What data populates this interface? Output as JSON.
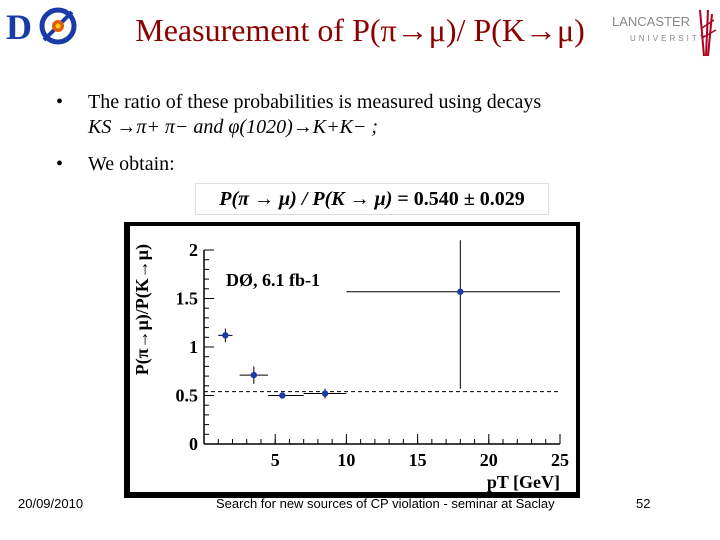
{
  "title": "Measurement of P(π→μ)/ P(K→μ)",
  "logos": {
    "left": "D0-logo",
    "right": "lancaster-university-logo"
  },
  "lancaster_text": {
    "top": "LANCASTER",
    "bottom": "UNIVERSITY"
  },
  "bullets": {
    "b1_line1": "The ratio of these probabilities is measured using decays",
    "b1_line2": "KS →π+ π− and φ(1020)→K+K− ;",
    "b2": "We obtain:"
  },
  "formula": {
    "lhs": "P(π → μ) / P(K → μ)",
    "rhs": "= 0.540 ± 0.029"
  },
  "chart_data": {
    "type": "scatter",
    "title": "",
    "annotation": "DØ, 6.1 fb-1",
    "xlabel": "pT [GeV]",
    "ylabel": "P(π→μ)/P(K→μ)",
    "xlim": [
      0,
      25
    ],
    "ylim": [
      0,
      2
    ],
    "xticks": [
      "5",
      "10",
      "15",
      "20",
      "25"
    ],
    "yticks": [
      "0",
      "0.5",
      "1",
      "1.5",
      "2"
    ],
    "points": [
      {
        "x": 1.5,
        "y": 1.12,
        "xerr": [
          1.0,
          2.0
        ],
        "yerr": 0.07
      },
      {
        "x": 3.5,
        "y": 0.71,
        "xerr": [
          2.5,
          4.5
        ],
        "yerr": 0.09
      },
      {
        "x": 5.5,
        "y": 0.5,
        "xerr": [
          4.5,
          7.0
        ],
        "yerr": 0.02
      },
      {
        "x": 8.5,
        "y": 0.52,
        "xerr": [
          7.0,
          10.0
        ],
        "yerr": 0.05
      },
      {
        "x": 18.0,
        "y": 1.57,
        "xerr": [
          10.0,
          25.0
        ],
        "yerr": 1.0
      }
    ],
    "reference_line": 0.54,
    "colors": {
      "marker": "#1a3aa8",
      "line": "#000000",
      "frame_bg": "#000000"
    }
  },
  "footer": {
    "date": "20/09/2010",
    "center": "Search for new sources of CP violation - seminar at Saclay",
    "page": "52"
  }
}
